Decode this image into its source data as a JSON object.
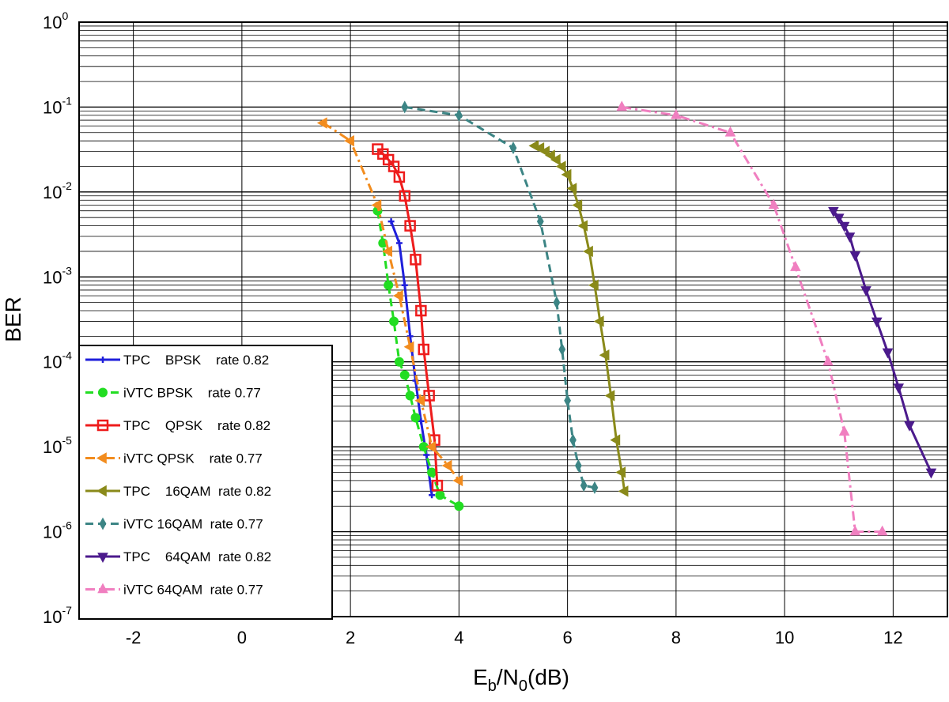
{
  "chart_data": {
    "type": "line",
    "xlabel": "E_b/N_0(dB)",
    "ylabel": "BER",
    "xlim": [
      -3,
      13
    ],
    "ylim": [
      1e-07,
      1
    ],
    "y_scale": "log",
    "grid": "on",
    "legend_position": "lower-left",
    "x_ticks": [
      {
        "value": -2,
        "label": "-2"
      },
      {
        "value": 0,
        "label": "0"
      },
      {
        "value": 2,
        "label": "2"
      },
      {
        "value": 4,
        "label": "4"
      },
      {
        "value": 6,
        "label": "6"
      },
      {
        "value": 8,
        "label": "8"
      },
      {
        "value": 10,
        "label": "10"
      },
      {
        "value": 12,
        "label": "12"
      }
    ],
    "y_ticks": [
      {
        "value": 1,
        "base": "10",
        "exp": "0"
      },
      {
        "value": 0.1,
        "base": "10",
        "exp": "-1"
      },
      {
        "value": 0.01,
        "base": "10",
        "exp": "-2"
      },
      {
        "value": 0.001,
        "base": "10",
        "exp": "-3"
      },
      {
        "value": 0.0001,
        "base": "10",
        "exp": "-4"
      },
      {
        "value": 1e-05,
        "base": "10",
        "exp": "-5"
      },
      {
        "value": 1e-06,
        "base": "10",
        "exp": "-6"
      },
      {
        "value": 1e-07,
        "base": "10",
        "exp": "-7"
      }
    ],
    "series": [
      {
        "name": "TPC BPSK rate 0.82",
        "legend_text": "TPC    BPSK    rate 0.82",
        "color": "#1f1fdb",
        "dash": "solid",
        "marker": "plus",
        "x": [
          2.75,
          2.9,
          3.0,
          3.1,
          3.2,
          3.3,
          3.4,
          3.5
        ],
        "y": [
          0.0045,
          0.0025,
          0.0008,
          0.0002,
          6e-05,
          2e-05,
          8e-06,
          2.7e-06
        ]
      },
      {
        "name": "iVTC BPSK rate 0.77",
        "legend_text": "iVTC BPSK    rate 0.77",
        "color": "#22dd22",
        "dash": "dash",
        "marker": "circle",
        "x": [
          2.5,
          2.6,
          2.7,
          2.8,
          2.9,
          3.0,
          3.1,
          3.2,
          3.35,
          3.5,
          3.65,
          4.0
        ],
        "y": [
          0.006,
          0.0025,
          0.0008,
          0.0003,
          0.0001,
          7e-05,
          4e-05,
          2.2e-05,
          1e-05,
          5e-06,
          2.7e-06,
          2e-06
        ]
      },
      {
        "name": "TPC QPSK rate 0.82",
        "legend_text": "TPC    QPSK    rate 0.82",
        "color": "#ee1c1c",
        "dash": "solid",
        "marker": "square",
        "x": [
          2.5,
          2.6,
          2.7,
          2.8,
          2.9,
          3.0,
          3.1,
          3.2,
          3.3,
          3.35,
          3.45,
          3.55,
          3.6
        ],
        "y": [
          0.032,
          0.028,
          0.024,
          0.02,
          0.015,
          0.009,
          0.004,
          0.0016,
          0.0004,
          0.00014,
          4e-05,
          1.2e-05,
          3.5e-06
        ]
      },
      {
        "name": "iVTC QPSK rate 0.77",
        "legend_text": "iVTC QPSK    rate 0.77",
        "color": "#f28c1e",
        "dash": "dashdot",
        "marker": "leftTriangle",
        "x": [
          1.5,
          2.0,
          2.5,
          2.7,
          2.9,
          3.1,
          3.3,
          3.5,
          3.8,
          4.0
        ],
        "y": [
          0.065,
          0.04,
          0.007,
          0.002,
          0.0006,
          0.00015,
          3.5e-05,
          1e-05,
          6e-06,
          4e-06
        ]
      },
      {
        "name": "TPC 16QAM rate 0.82",
        "legend_text": "TPC    16QAM  rate 0.82",
        "color": "#8a8a1a",
        "dash": "solid",
        "marker": "leftTriangle",
        "x": [
          5.4,
          5.5,
          5.6,
          5.7,
          5.8,
          5.9,
          6.0,
          6.1,
          6.2,
          6.3,
          6.4,
          6.5,
          6.6,
          6.7,
          6.8,
          6.9,
          7.0,
          7.05
        ],
        "y": [
          0.035,
          0.033,
          0.03,
          0.027,
          0.024,
          0.02,
          0.016,
          0.011,
          0.007,
          0.004,
          0.002,
          0.0008,
          0.0003,
          0.00012,
          4e-05,
          1.2e-05,
          5e-06,
          3e-06
        ]
      },
      {
        "name": "iVTC 16QAM rate 0.77",
        "legend_text": "iVTC 16QAM  rate 0.77",
        "color": "#3c8585",
        "dash": "dash",
        "marker": "diamond",
        "x": [
          3.0,
          4.0,
          5.0,
          5.5,
          5.8,
          5.9,
          6.0,
          6.1,
          6.2,
          6.3,
          6.5
        ],
        "y": [
          0.1,
          0.08,
          0.033,
          0.0045,
          0.0005,
          0.00014,
          3.5e-05,
          1.2e-05,
          6e-06,
          3.5e-06,
          3.3e-06
        ]
      },
      {
        "name": "TPC 64QAM rate 0.82",
        "legend_text": "TPC    64QAM  rate 0.82",
        "color": "#4b1a8c",
        "dash": "solid",
        "marker": "downTriangle",
        "x": [
          10.9,
          11.0,
          11.1,
          11.2,
          11.3,
          11.5,
          11.7,
          11.9,
          12.1,
          12.3,
          12.7
        ],
        "y": [
          0.006,
          0.005,
          0.004,
          0.003,
          0.0018,
          0.0007,
          0.0003,
          0.00013,
          5e-05,
          1.8e-05,
          5e-06
        ]
      },
      {
        "name": "iVTC 64QAM rate 0.77",
        "legend_text": "iVTC 64QAM  rate 0.77",
        "color": "#f07fc0",
        "dash": "dashdot",
        "marker": "upTriangle",
        "x": [
          7.0,
          8.0,
          9.0,
          9.8,
          10.2,
          10.8,
          11.1,
          11.3,
          11.8
        ],
        "y": [
          0.1,
          0.08,
          0.05,
          0.007,
          0.0013,
          0.0001,
          1.5e-05,
          1e-06,
          1e-06
        ]
      }
    ]
  }
}
